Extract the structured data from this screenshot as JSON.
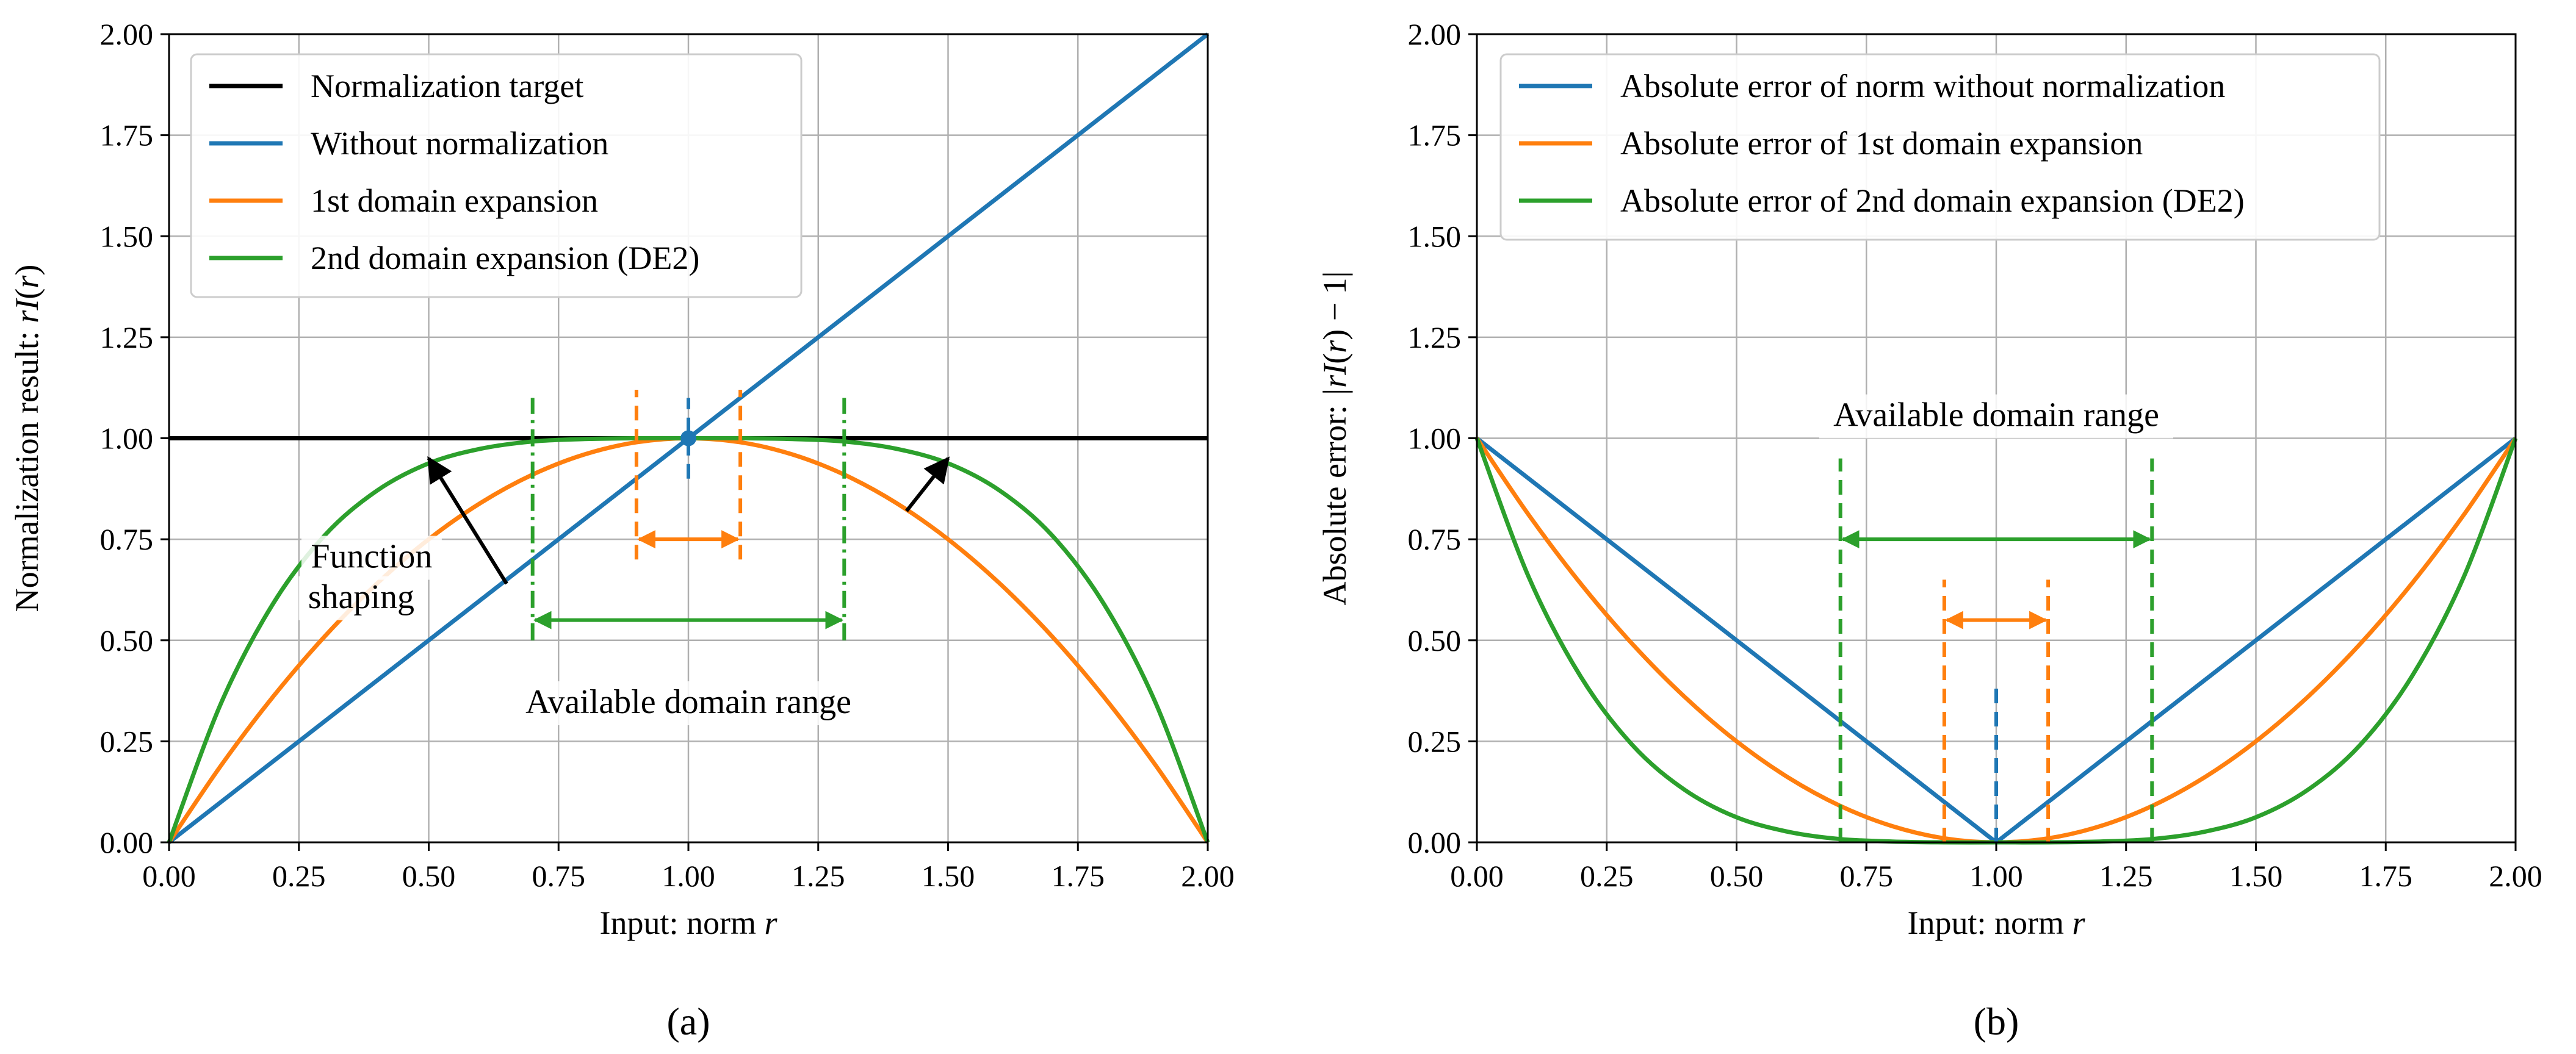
{
  "colors": {
    "black": "#000000",
    "blue": "#1f77b4",
    "orange": "#ff7f0e",
    "green": "#2ca02c",
    "grid": "#b0b0b0"
  },
  "chart_data": [
    {
      "type": "line",
      "panel": "(a)",
      "caption": "(a)",
      "title": "",
      "xlabel": "Input: norm r",
      "xlabel_parts": [
        "Input: norm ",
        "r"
      ],
      "ylabel": "Normalization result: rI(r)",
      "ylabel_parts": [
        "Normalization result: ",
        "rI",
        "(",
        "r",
        ")"
      ],
      "xlim": [
        0,
        2
      ],
      "ylim": [
        0,
        2
      ],
      "xticks": [
        "0.00",
        "0.25",
        "0.50",
        "0.75",
        "1.00",
        "1.25",
        "1.50",
        "1.75",
        "2.00"
      ],
      "yticks": [
        "0.00",
        "0.25",
        "0.50",
        "0.75",
        "1.00",
        "1.25",
        "1.50",
        "1.75",
        "2.00"
      ],
      "grid": true,
      "legend_position": "top-left",
      "series": [
        {
          "name": "Normalization target",
          "color": "black",
          "x": [
            0,
            2
          ],
          "y": [
            1,
            1
          ]
        },
        {
          "name": "Without normalization",
          "color": "blue",
          "x": [
            0,
            2
          ],
          "y": [
            0,
            2
          ]
        },
        {
          "name": "1st domain expansion",
          "color": "orange",
          "x": [
            0,
            0.1,
            0.2,
            0.3,
            0.4,
            0.5,
            0.6,
            0.7,
            0.8,
            0.9,
            1.0,
            1.1,
            1.2,
            1.3,
            1.4,
            1.5,
            1.6,
            1.7,
            1.8,
            1.9,
            2.0
          ],
          "y": [
            0,
            0.19,
            0.36,
            0.51,
            0.64,
            0.75,
            0.84,
            0.91,
            0.96,
            0.99,
            1.0,
            0.99,
            0.96,
            0.91,
            0.84,
            0.75,
            0.64,
            0.51,
            0.36,
            0.19,
            0
          ]
        },
        {
          "name": "2nd domain expansion (DE2)",
          "color": "green",
          "x": [
            0,
            0.1,
            0.2,
            0.3,
            0.4,
            0.5,
            0.6,
            0.7,
            0.8,
            0.9,
            1.0,
            1.1,
            1.2,
            1.3,
            1.4,
            1.5,
            1.6,
            1.7,
            1.8,
            1.9,
            2.0
          ],
          "y": [
            0,
            0.344,
            0.59,
            0.76,
            0.87,
            0.938,
            0.974,
            0.992,
            0.998,
            1.0,
            1.0,
            1.0,
            0.998,
            0.992,
            0.974,
            0.938,
            0.87,
            0.76,
            0.59,
            0.344,
            0
          ]
        }
      ],
      "markers": [
        {
          "x": 1.0,
          "y": 1.0,
          "color": "blue"
        }
      ],
      "vlines": [
        {
          "x": 1.0,
          "y0": 0.9,
          "y1": 1.1,
          "color": "blue",
          "style": "dashed"
        },
        {
          "x": 0.9,
          "y0": 0.7,
          "y1": 1.12,
          "color": "orange",
          "style": "dashed"
        },
        {
          "x": 1.1,
          "y0": 0.7,
          "y1": 1.12,
          "color": "orange",
          "style": "dashed"
        },
        {
          "x": 0.7,
          "y0": 0.5,
          "y1": 1.1,
          "color": "green",
          "style": "dashdot"
        },
        {
          "x": 1.3,
          "y0": 0.5,
          "y1": 1.1,
          "color": "green",
          "style": "dashdot"
        }
      ],
      "range_arrows": [
        {
          "x0": 0.9,
          "x1": 1.1,
          "y": 0.75,
          "color": "orange"
        },
        {
          "x0": 0.7,
          "x1": 1.3,
          "y": 0.55,
          "color": "green"
        }
      ],
      "shaping_arrows": [
        {
          "x0": 0.65,
          "y0": 0.64,
          "x1": 0.5,
          "y1": 0.95
        },
        {
          "x0": 1.42,
          "y0": 0.82,
          "x1": 1.5,
          "y1": 0.95
        }
      ],
      "annotations": [
        {
          "text": "Function",
          "x": 0.39,
          "y": 0.68
        },
        {
          "text": "shaping",
          "x": 0.37,
          "y": 0.58
        },
        {
          "text": "Available domain range",
          "x": 1.0,
          "y": 0.32
        }
      ]
    },
    {
      "type": "line",
      "panel": "(b)",
      "caption": "(b)",
      "title": "",
      "xlabel": "Input: norm r",
      "xlabel_parts": [
        "Input: norm ",
        "r"
      ],
      "ylabel": "Absolute error: |rI(r) − 1|",
      "ylabel_parts": [
        "Absolute error: ",
        "|rI",
        "(",
        "r",
        ") − 1|"
      ],
      "xlim": [
        0,
        2
      ],
      "ylim": [
        0,
        2
      ],
      "xticks": [
        "0.00",
        "0.25",
        "0.50",
        "0.75",
        "1.00",
        "1.25",
        "1.50",
        "1.75",
        "2.00"
      ],
      "yticks": [
        "0.00",
        "0.25",
        "0.50",
        "0.75",
        "1.00",
        "1.25",
        "1.50",
        "1.75",
        "2.00"
      ],
      "grid": true,
      "legend_position": "top-left",
      "series": [
        {
          "name": "Absolute error of norm without normalization",
          "color": "blue",
          "x": [
            0,
            1,
            2
          ],
          "y": [
            1,
            0,
            1
          ]
        },
        {
          "name": "Absolute error of 1st domain expansion",
          "color": "orange",
          "x": [
            0,
            0.1,
            0.2,
            0.3,
            0.4,
            0.5,
            0.6,
            0.7,
            0.8,
            0.9,
            1.0,
            1.1,
            1.2,
            1.3,
            1.4,
            1.5,
            1.6,
            1.7,
            1.8,
            1.9,
            2.0
          ],
          "y": [
            1.0,
            0.81,
            0.64,
            0.49,
            0.36,
            0.25,
            0.16,
            0.09,
            0.04,
            0.01,
            0.0,
            0.01,
            0.04,
            0.09,
            0.16,
            0.25,
            0.36,
            0.49,
            0.64,
            0.81,
            1.0
          ]
        },
        {
          "name": "Absolute error of 2nd domain expansion (DE2)",
          "color": "green",
          "x": [
            0,
            0.1,
            0.2,
            0.3,
            0.4,
            0.5,
            0.6,
            0.7,
            0.8,
            0.9,
            1.0,
            1.1,
            1.2,
            1.3,
            1.4,
            1.5,
            1.6,
            1.7,
            1.8,
            1.9,
            2.0
          ],
          "y": [
            1.0,
            0.656,
            0.41,
            0.24,
            0.13,
            0.062,
            0.026,
            0.008,
            0.002,
            0.0,
            0.0,
            0.0,
            0.002,
            0.008,
            0.026,
            0.062,
            0.13,
            0.24,
            0.41,
            0.656,
            1.0
          ]
        }
      ],
      "markers": [],
      "vlines": [
        {
          "x": 1.0,
          "y0": 0.0,
          "y1": 0.4,
          "color": "blue",
          "style": "dashed"
        },
        {
          "x": 0.9,
          "y0": 0.0,
          "y1": 0.65,
          "color": "orange",
          "style": "dashed"
        },
        {
          "x": 1.1,
          "y0": 0.0,
          "y1": 0.65,
          "color": "orange",
          "style": "dashed"
        },
        {
          "x": 0.7,
          "y0": 0.0,
          "y1": 0.95,
          "color": "green",
          "style": "dashed"
        },
        {
          "x": 1.3,
          "y0": 0.0,
          "y1": 0.95,
          "color": "green",
          "style": "dashed"
        }
      ],
      "range_arrows": [
        {
          "x0": 0.9,
          "x1": 1.1,
          "y": 0.55,
          "color": "orange"
        },
        {
          "x0": 0.7,
          "x1": 1.3,
          "y": 0.75,
          "color": "green"
        }
      ],
      "shaping_arrows": [],
      "annotations": [
        {
          "text": "Available domain range",
          "x": 1.0,
          "y": 1.03
        }
      ]
    }
  ]
}
